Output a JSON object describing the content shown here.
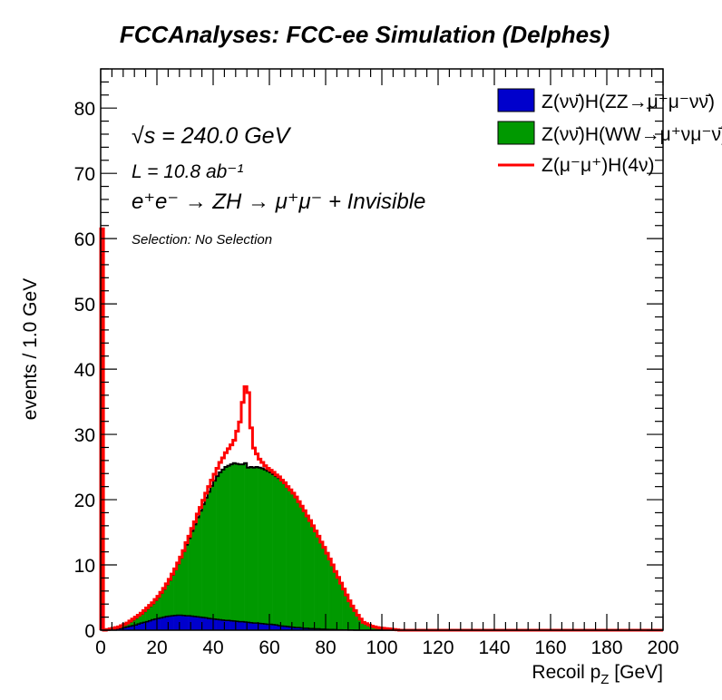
{
  "chart_data": {
    "type": "bar",
    "subtype": "stacked-histogram",
    "title": "FCCAnalyses: FCC-ee Simulation (Delphes)",
    "xlabel": "Recoil p_Z [GeV]",
    "xlabel_main": "Recoil p",
    "xlabel_sub": "Z",
    "xlabel_unit": " [GeV]",
    "ylabel": "events / 1.0 GeV",
    "xlim": [
      0,
      200
    ],
    "ylim": [
      0,
      86
    ],
    "bin_start": 0,
    "bin_width": 1,
    "x_ticks": [
      0,
      20,
      40,
      60,
      80,
      100,
      120,
      140,
      160,
      180,
      200
    ],
    "y_ticks": [
      0,
      10,
      20,
      30,
      40,
      50,
      60,
      70,
      80
    ],
    "grid": false,
    "legend_position": "top-right",
    "annotations": {
      "sqrt_s": "√s = 240.0 GeV",
      "lumi": "L = 10.8 ab⁻¹",
      "process": "e⁺e⁻ → ZH → μ⁺μ⁻ + Invisible",
      "selection": "Selection: No Selection"
    },
    "series": [
      {
        "name": "Z(νν̄)H(ZZ→μ⁺μ⁻νν̄)",
        "style": "fill",
        "color": "#0000cc",
        "values": [
          4.0,
          0,
          0.05,
          0.1,
          0.15,
          0.2,
          0.25,
          0.3,
          0.4,
          0.5,
          0.6,
          0.7,
          0.8,
          0.95,
          1.1,
          1.2,
          1.3,
          1.45,
          1.6,
          1.7,
          1.8,
          1.9,
          2.0,
          2.1,
          2.15,
          2.2,
          2.25,
          2.3,
          2.3,
          2.25,
          2.2,
          2.2,
          2.15,
          2.1,
          2.05,
          2.0,
          1.95,
          1.9,
          1.8,
          1.75,
          1.7,
          1.65,
          1.6,
          1.55,
          1.5,
          1.5,
          1.45,
          1.4,
          1.35,
          1.3,
          1.3,
          1.25,
          1.2,
          1.15,
          1.1,
          1.1,
          1.05,
          1.0,
          0.95,
          0.9,
          0.9,
          0.85,
          0.8,
          0.7,
          0.65,
          0.6,
          0.55,
          0.5,
          0.45,
          0.4,
          0.4,
          0.35,
          0.3,
          0.3,
          0.25,
          0.25,
          0.2,
          0.2,
          0.15,
          0.15,
          0.12,
          0.1,
          0.1,
          0.08,
          0.06,
          0.05,
          0.04,
          0.03,
          0.02,
          0.01,
          0,
          0,
          0,
          0,
          0,
          0,
          0,
          0,
          0,
          0,
          0,
          0,
          0,
          0,
          0,
          0
        ]
      },
      {
        "name": "Z(νν̄)H(WW→μ⁺νμ⁻ν̄)",
        "style": "fill",
        "color": "#009900",
        "values": [
          53.5,
          0,
          0.05,
          0.1,
          0.15,
          0.2,
          0.25,
          0.4,
          0.5,
          0.6,
          0.7,
          0.9,
          1.1,
          1.25,
          1.4,
          1.7,
          2.0,
          2.25,
          2.5,
          2.9,
          3.3,
          3.8,
          4.3,
          4.9,
          5.55,
          6.3,
          7.05,
          7.9,
          8.8,
          9.85,
          10.9,
          11.9,
          13.05,
          14.1,
          15.25,
          16.3,
          17.35,
          18.4,
          19.4,
          20.35,
          21.2,
          21.95,
          22.6,
          23.05,
          23.5,
          23.7,
          23.95,
          24.2,
          24.15,
          24.1,
          24.1,
          24.35,
          23.7,
          23.85,
          23.8,
          23.9,
          23.85,
          23.8,
          23.65,
          23.5,
          23.3,
          23.05,
          22.8,
          22.6,
          22.25,
          21.9,
          21.45,
          21.0,
          20.55,
          20.0,
          19.3,
          18.65,
          18.0,
          17.2,
          16.55,
          15.75,
          15.0,
          14.2,
          13.35,
          12.55,
          11.68,
          10.8,
          9.9,
          8.92,
          8.04,
          7.15,
          6.26,
          5.37,
          4.48,
          3.69,
          3.0,
          2.3,
          1.7,
          1.2,
          1.0,
          0.8,
          0.6,
          0.5,
          0.4,
          0.35,
          0.3,
          0.25,
          0.2,
          0.15,
          0.1,
          0.05
        ]
      },
      {
        "name": "Z(μ⁻μ⁺)H(4ν)",
        "style": "line",
        "color": "#ff0000",
        "values": [
          4.0,
          0,
          0,
          0,
          0,
          0,
          0,
          0,
          0,
          0,
          0.1,
          0.1,
          0.1,
          0.1,
          0.1,
          0.1,
          0.1,
          0.1,
          0.1,
          0.1,
          0.1,
          0.1,
          0.1,
          0.1,
          0.1,
          0.1,
          0.1,
          0.1,
          0.1,
          0.1,
          0.3,
          0.3,
          0.4,
          0.4,
          0.5,
          0.5,
          0.6,
          0.7,
          0.8,
          0.9,
          1.0,
          1.2,
          1.5,
          1.8,
          2.2,
          2.6,
          3.0,
          3.5,
          5.0,
          6.5,
          9.5,
          11.7,
          11.5,
          6.0,
          3.0,
          2.0,
          1.3,
          0.9,
          0.6,
          0.4,
          0.3,
          0.3,
          0.2,
          0.2,
          0.1,
          0.1,
          0,
          0,
          0,
          0,
          0,
          0,
          0,
          0,
          0,
          0,
          0,
          0,
          0,
          0,
          0,
          0,
          0,
          0,
          0,
          0,
          0,
          0,
          0,
          0,
          0,
          0,
          0,
          0,
          0,
          0,
          0,
          0,
          0,
          0,
          0,
          0,
          0,
          0,
          0,
          0
        ]
      }
    ]
  }
}
